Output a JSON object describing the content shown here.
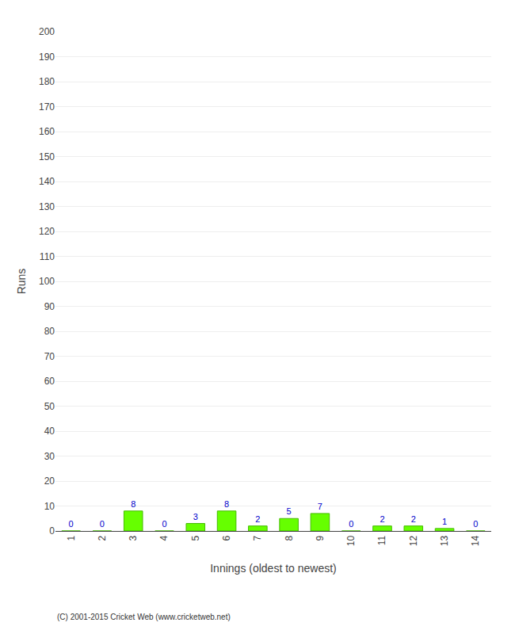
{
  "chart_data": {
    "type": "bar",
    "xlabel": "Innings (oldest to newest)",
    "ylabel": "Runs",
    "categories": [
      1,
      2,
      3,
      4,
      5,
      6,
      7,
      8,
      9,
      10,
      11,
      12,
      13,
      14
    ],
    "values": [
      0,
      0,
      8,
      0,
      3,
      8,
      2,
      5,
      7,
      0,
      2,
      2,
      1,
      0
    ],
    "color": "#66ff00",
    "ylim": [
      0,
      200
    ],
    "yticks": [
      0,
      10,
      20,
      30,
      40,
      50,
      60,
      70,
      80,
      90,
      100,
      110,
      120,
      130,
      140,
      150,
      160,
      170,
      180,
      190,
      200
    ],
    "grid": true,
    "data_labels": true,
    "annotations": [
      "(C) 2001-2015 Cricket Web (www.cricketweb.net)"
    ]
  }
}
